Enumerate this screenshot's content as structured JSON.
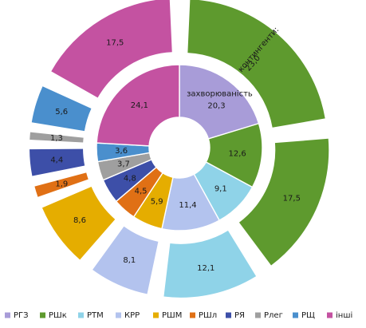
{
  "chart_data": {
    "type": "pie",
    "rings": [
      {
        "name": "захворюваність",
        "categories": [
          "РГЗ",
          "РШк",
          "РТМ",
          "КРР",
          "РШМ",
          "РШл",
          "РЯ",
          "Рлег",
          "РЩ",
          "інші"
        ],
        "values": [
          20.3,
          12.6,
          9.1,
          11.4,
          5.9,
          4.5,
          4.8,
          3.7,
          3.6,
          24.1
        ],
        "value_labels": [
          "20,3",
          "12,6",
          "9,1",
          "11,4",
          "5,9",
          "4,5",
          "4,8",
          "3,7",
          "3,6",
          "24,1"
        ],
        "annotation": "захворюваність"
      },
      {
        "name": "контингенти",
        "categories": [
          "контингенти",
          "РШк",
          "РТМ",
          "КРР",
          "РШМ",
          "РШл",
          "РЯ",
          "Рлег",
          "РЩ",
          "інші"
        ],
        "values": [
          23.0,
          17.5,
          12.1,
          8.1,
          8.6,
          1.9,
          4.4,
          1.3,
          5.6,
          17.5
        ],
        "value_labels": [
          "23,0",
          "17,5",
          "12,1",
          "8,1",
          "8,6",
          "1,9",
          "4,4",
          "1,3",
          "5,6",
          "17,5"
        ],
        "annotation": "контингенти:"
      }
    ],
    "legend": {
      "placement": "bottom",
      "entries": [
        "РГЗ",
        "РШк",
        "РТМ",
        "КРР",
        "РШМ",
        "РШл",
        "РЯ",
        "Рлег",
        "РЩ",
        "інші"
      ]
    },
    "colors": {
      "РГЗ": "#a89cd8",
      "РШк": "#5e9a2e",
      "РТМ": "#8fd3e8",
      "КРР": "#b3c3ee",
      "РШМ": "#e5ad00",
      "РШл": "#e07015",
      "РЯ": "#3d4fa8",
      "Рлег": "#9f9f9f",
      "РЩ": "#4a8fcd",
      "інші": "#c452a1",
      "контингенти": "#5e9a2e"
    }
  }
}
